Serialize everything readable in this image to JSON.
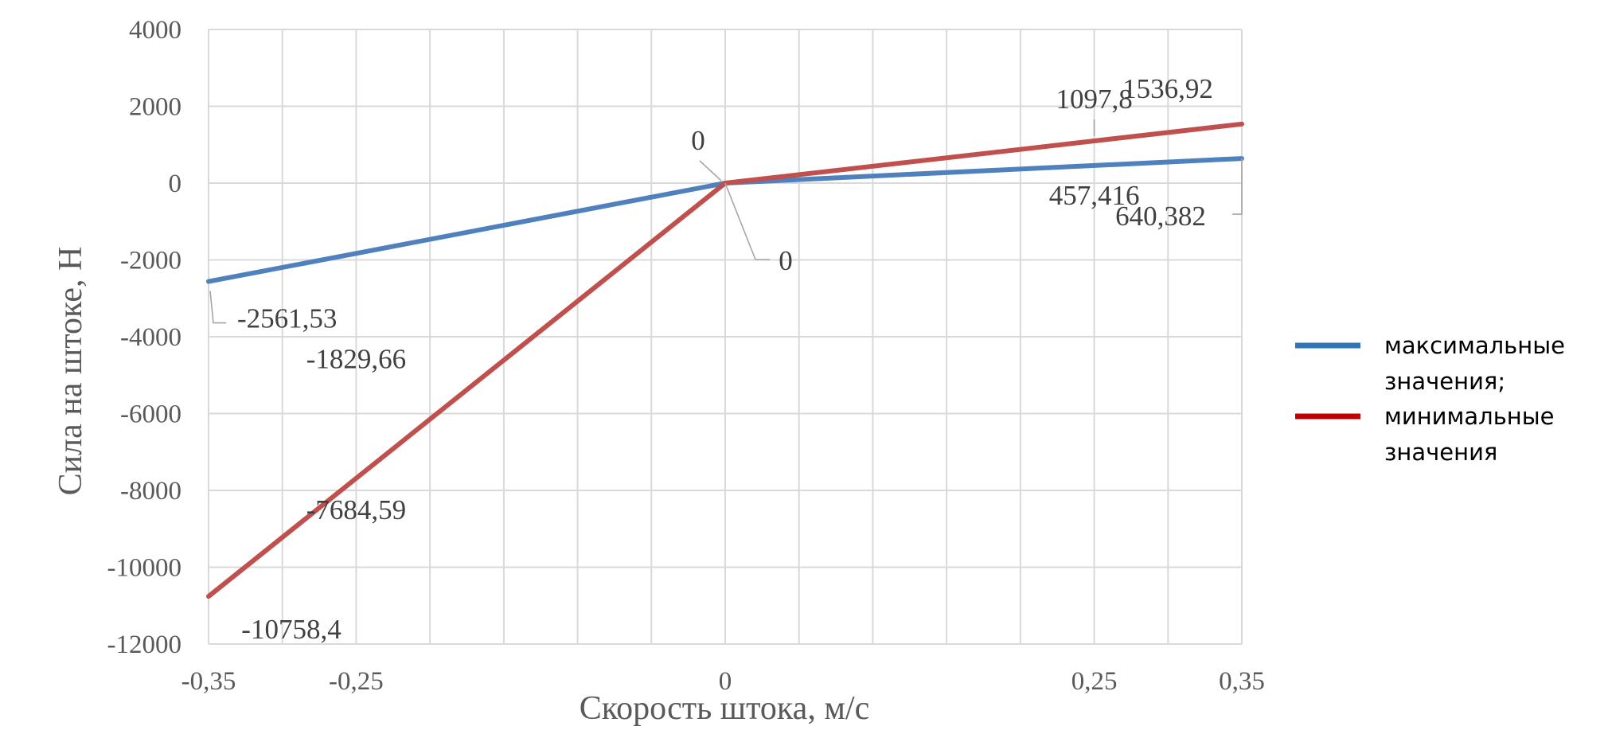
{
  "chart_data": {
    "type": "line",
    "title": "",
    "xlabel": "Скорость штока, м/с",
    "ylabel": "Сила на штоке, Н",
    "x": [
      -0.35,
      -0.25,
      0,
      0.25,
      0.35
    ],
    "x_tick_values": [
      -0.35,
      -0.25,
      0,
      0.25,
      0.35
    ],
    "x_tick_labels": [
      "-0,35",
      "-0,25",
      "0",
      "0,25",
      "0,35"
    ],
    "xlim": [
      -0.35,
      0.35
    ],
    "ylim": [
      -12000,
      4000
    ],
    "y_ticks": [
      4000,
      2000,
      0,
      -2000,
      -4000,
      -6000,
      -8000,
      -10000,
      -12000
    ],
    "grid": true,
    "legend_position": "right",
    "series": [
      {
        "name": "максимальные значения;",
        "legend_lines": [
          "максимальные",
          "значения;"
        ],
        "color": "#4f81bd",
        "legend_color": "#2e75b6",
        "values": [
          -2561.53,
          -1829.66,
          0,
          457.416,
          640.382
        ],
        "labels": [
          "-2561,53",
          "-1829,66",
          "0",
          "457,416",
          "640,382"
        ]
      },
      {
        "name": "минимальные значения",
        "legend_lines": [
          "минимальные",
          "значения"
        ],
        "color": "#c0504d",
        "legend_color": "#c00000",
        "values": [
          -10758.4,
          -7684.59,
          0,
          1097.8,
          1536.92
        ],
        "labels": [
          "-10758,4",
          "-7684,59",
          "0",
          "1097,8",
          "1536,92"
        ]
      }
    ]
  }
}
